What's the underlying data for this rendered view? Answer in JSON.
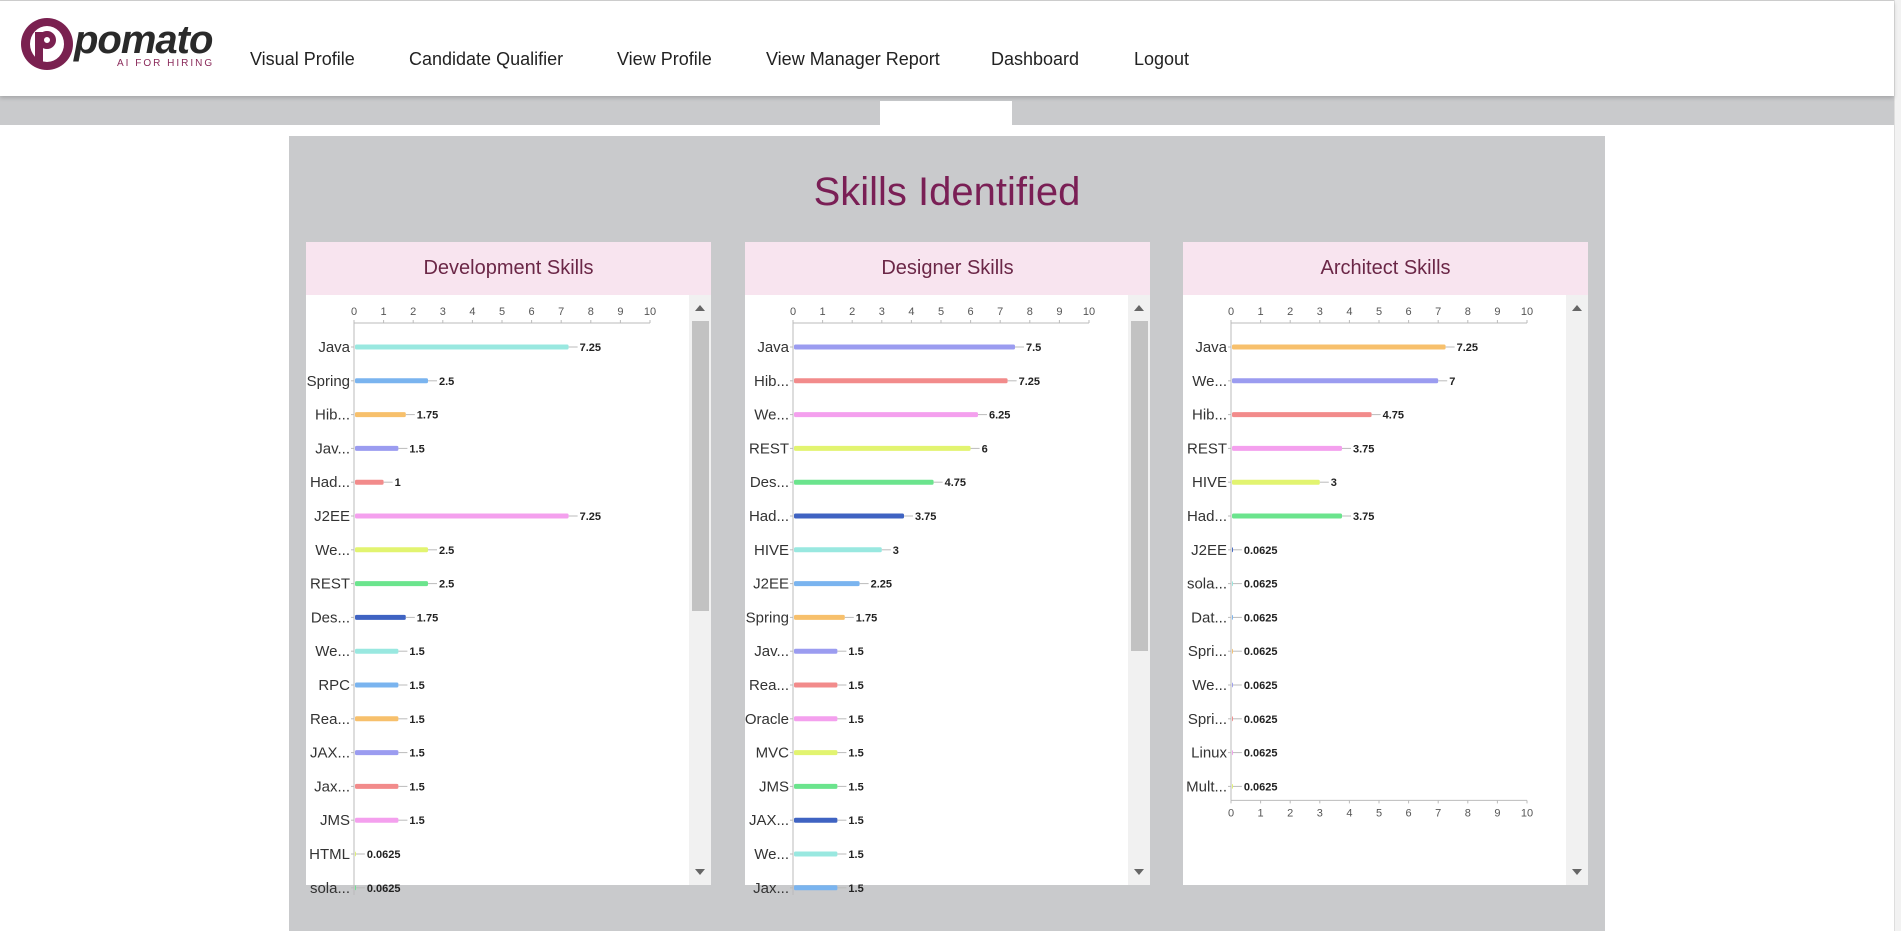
{
  "navbar": {
    "logo": {
      "word": "pomato",
      "tagline": "AI FOR HIRING"
    },
    "items": [
      "Visual Profile",
      "Candidate Qualifier",
      "View Profile",
      "View Manager Report",
      "Dashboard",
      "Logout"
    ]
  },
  "page": {
    "title": "Skills Identified"
  },
  "colors": {
    "accent": "#7a1f55",
    "panel_bg": "#c9cacc",
    "card_header_bg": "#f8e4ef",
    "bar_palette": [
      "#99e8e0",
      "#7ab4ef",
      "#f7c06c",
      "#9b9cf0",
      "#f28b8b",
      "#f4a0ee",
      "#e2f470",
      "#6be48d",
      "#3f63c2"
    ]
  },
  "chart_data": [
    {
      "type": "bar",
      "orientation": "horizontal",
      "title": "Development Skills",
      "xlim": [
        0,
        10
      ],
      "xticks": [
        "0",
        "1",
        "2",
        "3",
        "4",
        "5",
        "6",
        "7",
        "8",
        "9",
        "10"
      ],
      "categories": [
        "Java",
        "Spring",
        "Hib...",
        "Jav...",
        "Had...",
        "J2EE",
        "We...",
        "REST",
        "Des...",
        "We...",
        "RPC",
        "Rea...",
        "JAX...",
        "Jax...",
        "JMS",
        "HTML",
        "sola..."
      ],
      "values": [
        7.25,
        2.5,
        1.75,
        1.5,
        1,
        7.25,
        2.5,
        2.5,
        1.75,
        1.5,
        1.5,
        1.5,
        1.5,
        1.5,
        1.5,
        0.0625,
        0.0625
      ],
      "value_labels": [
        "7.25",
        "2.5",
        "1.75",
        "1.5",
        "1",
        "7.25",
        "2.5",
        "2.5",
        "1.75",
        "1.5",
        "1.5",
        "1.5",
        "1.5",
        "1.5",
        "1.5",
        "0.0625",
        "0.0625"
      ],
      "color_indices": [
        0,
        1,
        2,
        3,
        4,
        5,
        6,
        7,
        8,
        0,
        1,
        2,
        3,
        4,
        5,
        6,
        7
      ],
      "top_axis": true,
      "bottom_axis": false
    },
    {
      "type": "bar",
      "orientation": "horizontal",
      "title": "Designer Skills",
      "xlim": [
        0,
        10
      ],
      "xticks": [
        "0",
        "1",
        "2",
        "3",
        "4",
        "5",
        "6",
        "7",
        "8",
        "9",
        "10"
      ],
      "categories": [
        "Java",
        "Hib...",
        "We...",
        "REST",
        "Des...",
        "Had...",
        "HIVE",
        "J2EE",
        "Spring",
        "Jav...",
        "Rea...",
        "Oracle",
        "MVC",
        "JMS",
        "JAX...",
        "We...",
        "Jax..."
      ],
      "values": [
        7.5,
        7.25,
        6.25,
        6,
        4.75,
        3.75,
        3,
        2.25,
        1.75,
        1.5,
        1.5,
        1.5,
        1.5,
        1.5,
        1.5,
        1.5,
        1.5
      ],
      "value_labels": [
        "7.5",
        "7.25",
        "6.25",
        "6",
        "4.75",
        "3.75",
        "3",
        "2.25",
        "1.75",
        "1.5",
        "1.5",
        "1.5",
        "1.5",
        "1.5",
        "1.5",
        "1.5",
        "1.5"
      ],
      "color_indices": [
        3,
        4,
        5,
        6,
        7,
        8,
        0,
        1,
        2,
        3,
        4,
        5,
        6,
        7,
        8,
        0,
        1
      ],
      "top_axis": true,
      "bottom_axis": false
    },
    {
      "type": "bar",
      "orientation": "horizontal",
      "title": "Architect Skills",
      "xlim": [
        0,
        10
      ],
      "xticks": [
        "0",
        "1",
        "2",
        "3",
        "4",
        "5",
        "6",
        "7",
        "8",
        "9",
        "10"
      ],
      "categories": [
        "Java",
        "We...",
        "Hib...",
        "REST",
        "HIVE",
        "Had...",
        "J2EE",
        "sola...",
        "Dat...",
        "Spri...",
        "We...",
        "Spri...",
        "Linux",
        "Mult..."
      ],
      "values": [
        7.25,
        7,
        4.75,
        3.75,
        3,
        3.75,
        0.0625,
        0.0625,
        0.0625,
        0.0625,
        0.0625,
        0.0625,
        0.0625,
        0.0625
      ],
      "value_labels": [
        "7.25",
        "7",
        "4.75",
        "3.75",
        "3",
        "3.75",
        "0.0625",
        "0.0625",
        "0.0625",
        "0.0625",
        "0.0625",
        "0.0625",
        "0.0625",
        "0.0625"
      ],
      "color_indices": [
        2,
        3,
        4,
        5,
        6,
        7,
        8,
        0,
        1,
        2,
        3,
        4,
        5,
        6
      ],
      "top_axis": true,
      "bottom_axis": true
    }
  ]
}
